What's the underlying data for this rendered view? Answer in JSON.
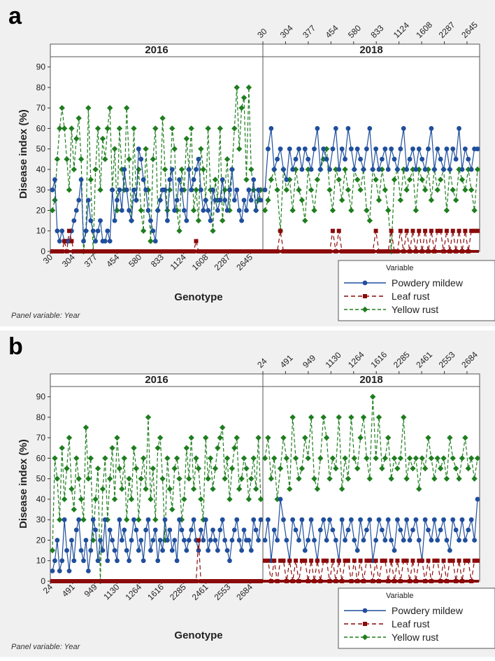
{
  "figure": {
    "footnote": "Panel variable: Year"
  },
  "colors": {
    "powdery_mildew": "#1f4e9c",
    "leaf_rust": "#8b0a0a",
    "yellow_rust": "#1e7d1e",
    "panel_bg": "#f0f0f0",
    "plot_bg": "#ffffff"
  },
  "legend": {
    "title": "Variable",
    "entries": [
      "Powdery mildew",
      "Leaf rust",
      "Yellow rust"
    ]
  },
  "chart_data": [
    {
      "panel_label": "a",
      "type": "line",
      "ylabel": "Disease index (%)",
      "xlabel": "Genotype",
      "ylim": [
        0,
        95
      ],
      "yticks": [
        0,
        10,
        20,
        30,
        40,
        50,
        60,
        70,
        80,
        90
      ],
      "facets": [
        "2016",
        "2018"
      ],
      "bottom_ticks": [
        "30",
        "304",
        "377",
        "454",
        "580",
        "833",
        "1124",
        "1608",
        "2287",
        "2645"
      ],
      "top_ticks": [
        "30",
        "304",
        "377",
        "454",
        "580",
        "833",
        "1124",
        "1608",
        "2287",
        "2645"
      ],
      "series": [
        {
          "name": "Powdery mildew",
          "facet_2016": [
            30,
            35,
            10,
            5,
            10,
            5,
            5,
            5,
            10,
            15,
            20,
            25,
            35,
            5,
            10,
            25,
            15,
            10,
            5,
            10,
            15,
            5,
            5,
            10,
            5,
            30,
            15,
            25,
            30,
            20,
            40,
            30,
            20,
            15,
            30,
            25,
            50,
            45,
            35,
            30,
            20,
            15,
            10,
            5,
            20,
            25,
            30,
            30,
            15,
            35,
            40,
            20,
            25,
            35,
            30,
            20,
            15,
            40,
            30,
            35,
            40,
            45,
            30,
            20,
            25,
            20,
            15,
            30,
            25,
            20,
            25,
            35,
            25,
            20,
            30,
            40,
            25,
            30,
            20,
            15,
            25,
            20,
            30,
            25,
            35,
            20,
            30,
            25
          ],
          "facet_2018": [
            30,
            50,
            60,
            40,
            45,
            50,
            40,
            35,
            50,
            40,
            45,
            50,
            40,
            50,
            45,
            40,
            50,
            60,
            40,
            50,
            45,
            40,
            50,
            60,
            40,
            50,
            45,
            60,
            50,
            40,
            50,
            45,
            40,
            50,
            60,
            40,
            50,
            40,
            45,
            50,
            40,
            50,
            45,
            40,
            50,
            60,
            40,
            45,
            50,
            40,
            50,
            45,
            40,
            50,
            60,
            40,
            50,
            45,
            40,
            50,
            40,
            50,
            45,
            60,
            40,
            50,
            45,
            40,
            50,
            50
          ]
        },
        {
          "name": "Leaf rust",
          "facet_2016": [
            0,
            0,
            0,
            0,
            0,
            5,
            0,
            10,
            5,
            0,
            0,
            0,
            0,
            0,
            0,
            0,
            0,
            0,
            0,
            0,
            0,
            0,
            0,
            0,
            0,
            0,
            0,
            0,
            0,
            0,
            0,
            0,
            0,
            0,
            0,
            0,
            0,
            0,
            0,
            0,
            0,
            0,
            0,
            0,
            0,
            0,
            0,
            0,
            0,
            0,
            0,
            0,
            0,
            0,
            0,
            0,
            0,
            0,
            0,
            0,
            5,
            0,
            0,
            0,
            0,
            0,
            0,
            0,
            0,
            0,
            0,
            0,
            0,
            0,
            0,
            0,
            0,
            0,
            0,
            0,
            0,
            0,
            0,
            0,
            0,
            0,
            0,
            0
          ],
          "facet_2018": [
            0,
            0,
            0,
            0,
            0,
            10,
            0,
            0,
            0,
            0,
            0,
            0,
            0,
            0,
            0,
            0,
            0,
            0,
            0,
            0,
            0,
            0,
            10,
            0,
            10,
            0,
            0,
            0,
            0,
            0,
            0,
            0,
            0,
            0,
            0,
            0,
            10,
            0,
            0,
            0,
            0,
            10,
            0,
            0,
            10,
            0,
            10,
            0,
            10,
            0,
            10,
            0,
            10,
            0,
            10,
            0,
            10,
            10,
            0,
            10,
            0,
            10,
            0,
            10,
            0,
            10,
            0,
            10,
            10,
            10
          ]
        },
        {
          "name": "Yellow rust",
          "facet_2016": [
            20,
            25,
            45,
            60,
            70,
            60,
            45,
            30,
            60,
            40,
            55,
            65,
            45,
            0,
            10,
            70,
            35,
            0,
            40,
            60,
            30,
            55,
            45,
            60,
            70,
            30,
            50,
            20,
            60,
            40,
            30,
            70,
            45,
            15,
            60,
            25,
            40,
            20,
            10,
            50,
            30,
            5,
            45,
            60,
            20,
            25,
            65,
            40,
            20,
            30,
            60,
            50,
            20,
            10,
            40,
            30,
            55,
            40,
            60,
            20,
            30,
            15,
            50,
            40,
            25,
            60,
            30,
            10,
            35,
            25,
            60,
            15,
            30,
            45,
            20,
            40,
            60,
            80,
            50,
            70,
            75,
            35,
            80,
            40,
            30,
            20,
            25,
            30
          ],
          "facet_2018": [
            20,
            25,
            35,
            40,
            30,
            10,
            40,
            30,
            35,
            20,
            40,
            30,
            25,
            15,
            40,
            30,
            20,
            35,
            40,
            45,
            50,
            30,
            20,
            40,
            35,
            25,
            40,
            30,
            20,
            40,
            35,
            30,
            40,
            20,
            15,
            40,
            35,
            25,
            40,
            30,
            20,
            0,
            35,
            40,
            25,
            40,
            30,
            35,
            40,
            20,
            40,
            35,
            30,
            40,
            25,
            40,
            30,
            35,
            40,
            20,
            40,
            30,
            25,
            40,
            35,
            30,
            40,
            30,
            20,
            40
          ]
        }
      ]
    },
    {
      "panel_label": "b",
      "type": "line",
      "ylabel": "Disease index (%)",
      "xlabel": "Genotype",
      "ylim": [
        0,
        95
      ],
      "yticks": [
        0,
        10,
        20,
        30,
        40,
        50,
        60,
        70,
        80,
        90
      ],
      "facets": [
        "2016",
        "2018"
      ],
      "bottom_ticks": [
        "24",
        "491",
        "949",
        "1130",
        "1264",
        "1616",
        "2285",
        "2461",
        "2553",
        "2684"
      ],
      "top_ticks": [
        "24",
        "491",
        "949",
        "1130",
        "1264",
        "1616",
        "2285",
        "2461",
        "2553",
        "2684"
      ],
      "series": [
        {
          "name": "Powdery mildew",
          "facet_2016": [
            5,
            10,
            20,
            5,
            10,
            30,
            15,
            5,
            20,
            10,
            25,
            30,
            15,
            10,
            20,
            5,
            15,
            30,
            25,
            10,
            20,
            15,
            30,
            10,
            25,
            20,
            15,
            10,
            30,
            20,
            25,
            15,
            10,
            20,
            30,
            25,
            15,
            20,
            10,
            25,
            30,
            15,
            20,
            25,
            10,
            20,
            15,
            30,
            20,
            25,
            15,
            20,
            10,
            30,
            25,
            20,
            15,
            20,
            25,
            30,
            20,
            15,
            25,
            20,
            30,
            15,
            20,
            25,
            20,
            15,
            25,
            30,
            20,
            15,
            10,
            20,
            25,
            30,
            20,
            15,
            25,
            20,
            20,
            15,
            30,
            25,
            20,
            30
          ],
          "facet_2018": [
            20,
            30,
            10,
            25,
            20,
            40,
            30,
            20,
            10,
            30,
            25,
            20,
            30,
            15,
            20,
            30,
            20,
            10,
            25,
            30,
            20,
            30,
            25,
            20,
            10,
            30,
            20,
            25,
            30,
            20,
            15,
            30,
            20,
            25,
            30,
            10,
            20,
            30,
            25,
            20,
            30,
            20,
            15,
            30,
            25,
            20,
            30,
            20,
            25,
            30,
            20,
            10,
            30,
            25,
            20,
            30,
            20,
            25,
            30,
            20,
            15,
            30,
            25,
            20,
            30,
            20,
            25,
            30,
            20,
            40
          ]
        },
        {
          "name": "Leaf rust",
          "facet_2016": [
            0,
            0,
            0,
            0,
            0,
            0,
            0,
            0,
            0,
            0,
            0,
            0,
            0,
            0,
            0,
            0,
            0,
            0,
            0,
            0,
            0,
            0,
            0,
            0,
            0,
            0,
            0,
            0,
            0,
            0,
            0,
            0,
            0,
            0,
            0,
            0,
            0,
            0,
            0,
            0,
            0,
            0,
            0,
            0,
            0,
            0,
            0,
            0,
            0,
            0,
            0,
            0,
            0,
            0,
            0,
            0,
            0,
            0,
            0,
            0,
            0,
            20,
            0,
            0,
            0,
            0,
            0,
            0,
            0,
            0,
            0,
            0,
            0,
            0,
            0,
            0,
            0,
            0,
            0,
            0,
            0,
            0,
            0,
            0,
            0,
            0,
            0,
            0
          ],
          "facet_2018": [
            10,
            10,
            0,
            10,
            0,
            10,
            10,
            0,
            10,
            0,
            10,
            0,
            10,
            10,
            0,
            10,
            0,
            10,
            0,
            10,
            10,
            0,
            10,
            0,
            10,
            0,
            10,
            10,
            0,
            10,
            0,
            10,
            0,
            10,
            10,
            0,
            10,
            0,
            10,
            10,
            0,
            10,
            0,
            10,
            0,
            10,
            10,
            0,
            10,
            0,
            10,
            10,
            0,
            10,
            0,
            10,
            10,
            0,
            10,
            0,
            10,
            10,
            0,
            10,
            0,
            10,
            10,
            0,
            10,
            10
          ]
        },
        {
          "name": "Yellow rust",
          "facet_2016": [
            15,
            60,
            50,
            30,
            65,
            40,
            55,
            70,
            45,
            35,
            60,
            50,
            40,
            30,
            75,
            50,
            60,
            20,
            40,
            55,
            0,
            45,
            60,
            30,
            50,
            65,
            40,
            70,
            55,
            45,
            60,
            30,
            50,
            40,
            65,
            55,
            30,
            50,
            60,
            45,
            80,
            40,
            55,
            30,
            65,
            70,
            50,
            20,
            60,
            45,
            35,
            55,
            60,
            50,
            30,
            40,
            65,
            50,
            70,
            45,
            60,
            55,
            40,
            30,
            70,
            50,
            60,
            45,
            55,
            65,
            70,
            75,
            50,
            60,
            40,
            55,
            65,
            70,
            45,
            50,
            60,
            55,
            40,
            50,
            60,
            45,
            70,
            40
          ],
          "facet_2018": [
            60,
            70,
            50,
            60,
            40,
            55,
            70,
            60,
            45,
            80,
            60,
            50,
            55,
            70,
            60,
            80,
            50,
            45,
            60,
            80,
            70,
            50,
            60,
            55,
            80,
            45,
            60,
            50,
            80,
            60,
            55,
            70,
            80,
            60,
            50,
            90,
            60,
            80,
            55,
            60,
            70,
            50,
            60,
            55,
            60,
            80,
            50,
            60,
            55,
            60,
            45,
            60,
            55,
            70,
            60,
            50,
            60,
            55,
            60,
            50,
            70,
            60,
            55,
            50,
            60,
            70,
            55,
            60,
            50,
            60
          ]
        }
      ]
    }
  ]
}
